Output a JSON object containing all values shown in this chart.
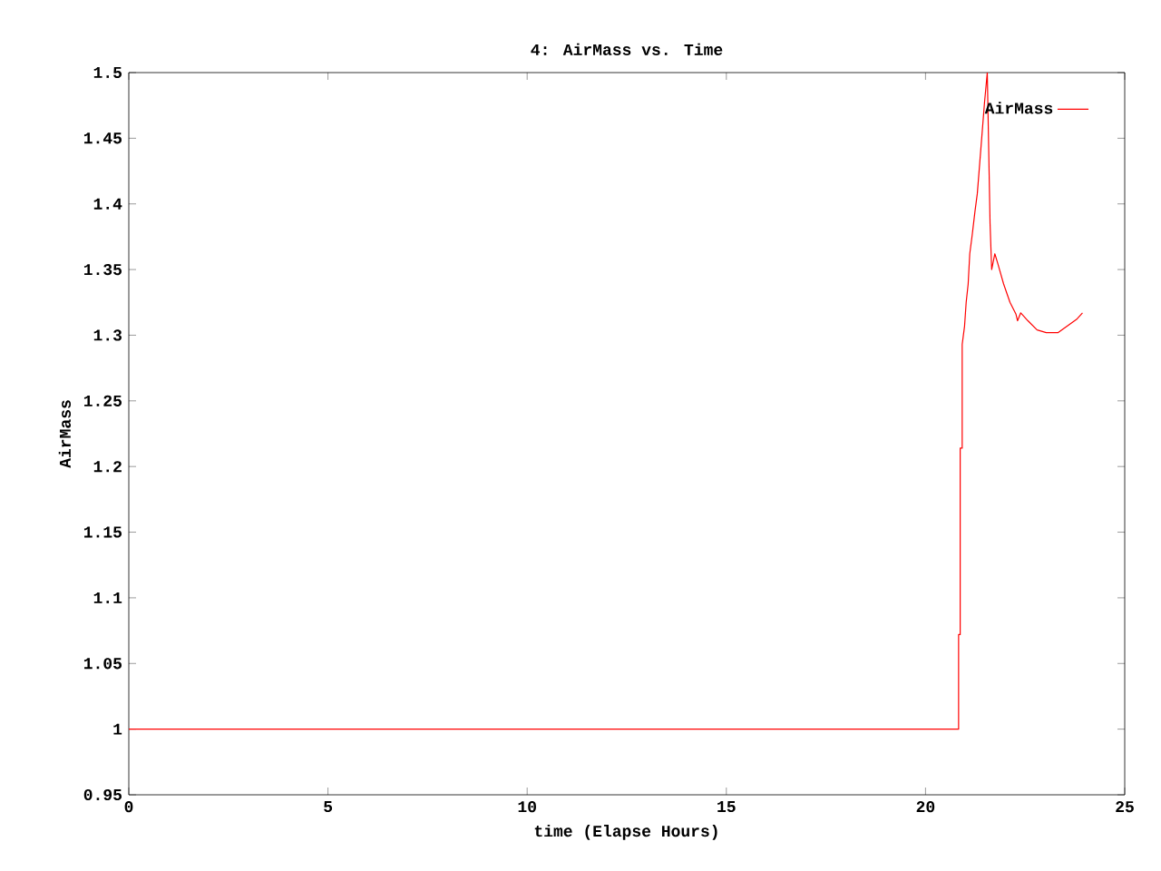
{
  "chart_data": {
    "type": "line",
    "title": "4: AirMass vs. Time",
    "xlabel": "time (Elapse Hours)",
    "ylabel": "AirMass",
    "xlim": [
      0,
      25
    ],
    "xticks": [
      0,
      5,
      10,
      15,
      20,
      25
    ],
    "ylim": [
      0.95,
      1.5
    ],
    "yticks": [
      0.95,
      1,
      1.05,
      1.1,
      1.15,
      1.2,
      1.25,
      1.3,
      1.35,
      1.4,
      1.45,
      1.5
    ],
    "legend": "top right",
    "grid": false,
    "series": [
      {
        "name": "AirMass",
        "color": "#ff0000",
        "x": [
          0,
          20.83,
          20.83,
          20.87,
          20.87,
          20.92,
          20.92,
          20.98,
          21.02,
          21.07,
          21.11,
          21.17,
          21.24,
          21.3,
          21.36,
          21.42,
          21.48,
          21.55,
          21.62,
          21.66,
          21.74,
          21.81,
          21.96,
          22.12,
          22.27,
          22.31,
          22.39,
          22.57,
          22.8,
          23.03,
          23.33,
          23.56,
          23.79,
          23.94
        ],
        "values": [
          1.0,
          1.0,
          1.072,
          1.072,
          1.214,
          1.214,
          1.293,
          1.307,
          1.325,
          1.339,
          1.362,
          1.376,
          1.394,
          1.408,
          1.431,
          1.454,
          1.477,
          1.5,
          1.385,
          1.35,
          1.362,
          1.355,
          1.339,
          1.325,
          1.316,
          1.311,
          1.317,
          1.311,
          1.304,
          1.302,
          1.302,
          1.307,
          1.312,
          1.317
        ]
      }
    ]
  }
}
